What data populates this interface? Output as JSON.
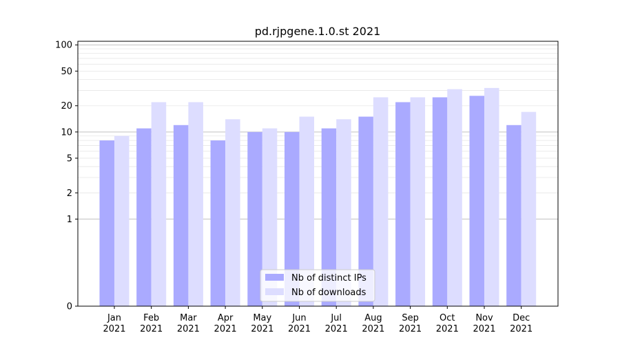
{
  "chart_data": {
    "type": "bar",
    "title": "pd.rjpgene.1.0.st 2021",
    "xlabel": "",
    "ylabel": "",
    "yscale": "symlog",
    "ylim": [
      0,
      110
    ],
    "yticks": [
      0,
      1,
      2,
      5,
      10,
      20,
      50,
      100
    ],
    "grid": true,
    "legend_position": "lower center",
    "categories": [
      "Jan\n2021",
      "Feb\n2021",
      "Mar\n2021",
      "Apr\n2021",
      "May\n2021",
      "Jun\n2021",
      "Jul\n2021",
      "Aug\n2021",
      "Sep\n2021",
      "Oct\n2021",
      "Nov\n2021",
      "Dec\n2021"
    ],
    "series": [
      {
        "name": "Nb of distinct IPs",
        "color": "#aaaaff",
        "values": [
          8,
          11,
          12,
          8,
          10,
          10,
          11,
          15,
          22,
          25,
          26,
          12
        ]
      },
      {
        "name": "Nb of downloads",
        "color": "#ddddff",
        "values": [
          9,
          22,
          22,
          14,
          11,
          15,
          14,
          25,
          25,
          31,
          32,
          17
        ]
      }
    ]
  }
}
